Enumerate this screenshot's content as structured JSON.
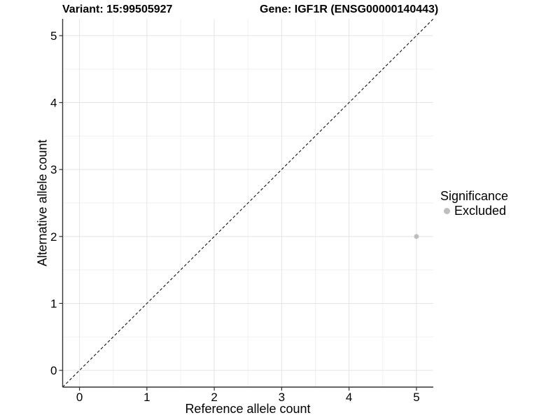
{
  "figure": {
    "title_left": "Variant: 15:99505927",
    "title_right": "Gene: IGF1R (ENSG00000140443)"
  },
  "chart_data": {
    "type": "scatter",
    "title_left": "Variant: 15:99505927",
    "title_right": "Gene: IGF1R (ENSG00000140443)",
    "xlabel": "Reference allele count",
    "ylabel": "Alternative allele count",
    "xlim": [
      -0.25,
      5.25
    ],
    "ylim": [
      -0.25,
      5.25
    ],
    "x_ticks": [
      0,
      1,
      2,
      3,
      4,
      5
    ],
    "y_ticks": [
      0,
      1,
      2,
      3,
      4,
      5
    ],
    "grid": "major+minor",
    "points": [
      {
        "x": 5,
        "y": 2,
        "series": "Excluded"
      }
    ],
    "reference_line": {
      "type": "abline",
      "intercept": 0,
      "slope": 1,
      "style": "dashed"
    },
    "legend": {
      "title": "Significance",
      "position": "right",
      "entries": [
        {
          "label": "Excluded",
          "color": "#bebebe"
        }
      ]
    },
    "colors": {
      "point": "#bebebe",
      "grid_major": "#e4e4e4",
      "grid_minor": "#f1f1f1",
      "axis": "#333333",
      "dashed_line": "#111111",
      "text": "#000000"
    }
  }
}
